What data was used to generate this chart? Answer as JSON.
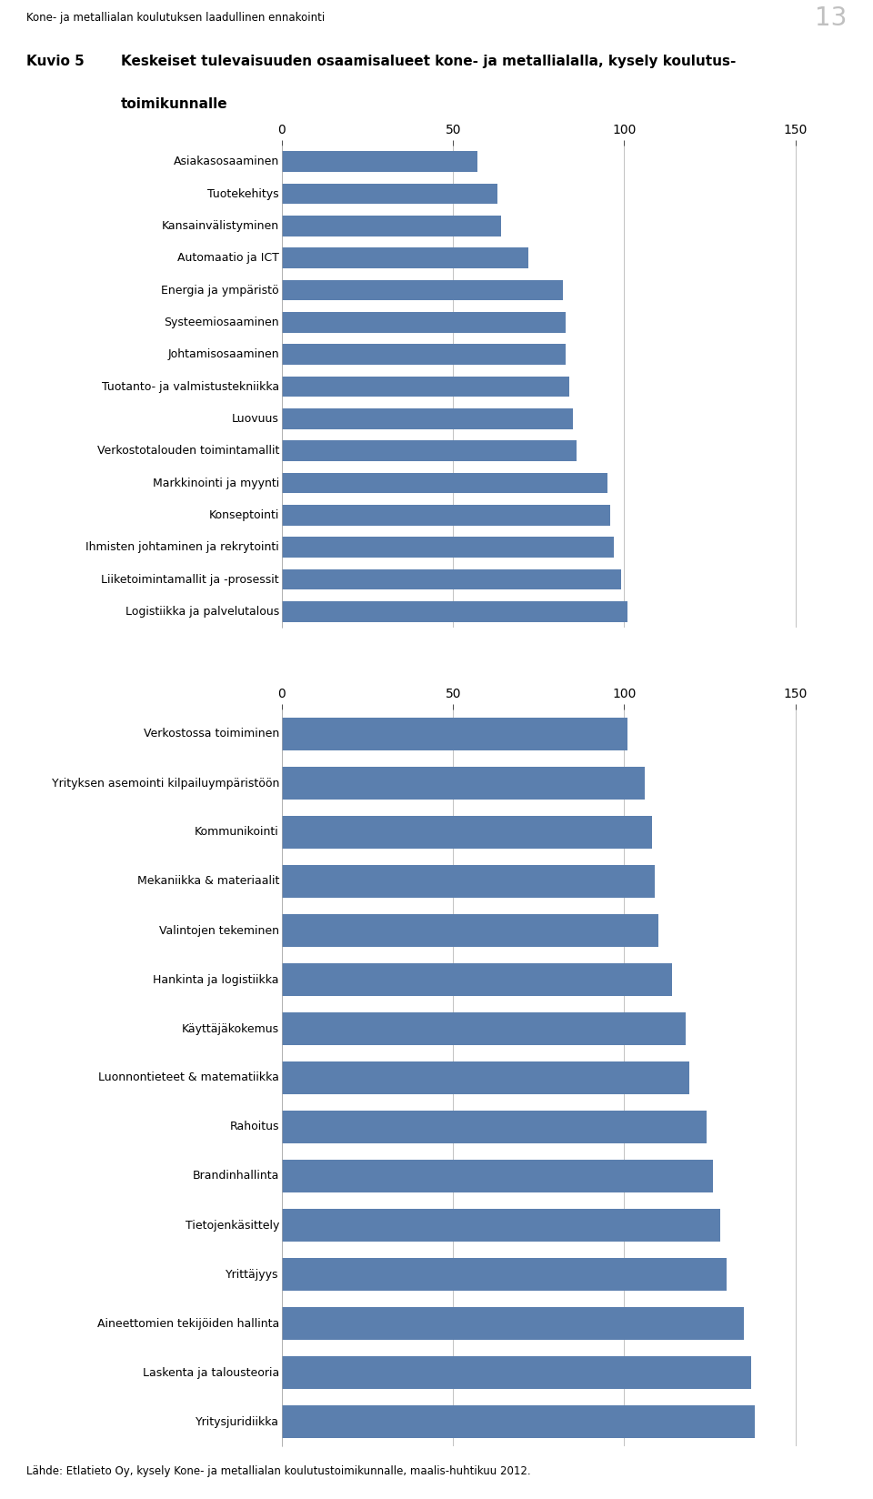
{
  "header_text": "Kone- ja metallialan koulutuksen laadullinen ennakointi",
  "page_number": "13",
  "title_label": "Kuvio 5",
  "title_text1": "Keskeiset tulevaisuuden osaamisalueet kone- ja metallialalla, kysely koulutus-",
  "title_text2": "toimikunnalle",
  "footer_text": "Lähde: Etlatieto Oy, kysely Kone- ja metallialan koulutustoimikunnalle, maalis-huhtikuu 2012.",
  "bar_color": "#5b7fae",
  "chart1_categories": [
    "Asiakasosaaminen",
    "Tuotekehitys",
    "Kansainvälistyminen",
    "Automaatio ja ICT",
    "Energia ja ympäristö",
    "Systeemiosaaminen",
    "Johtamisosaaminen",
    "Tuotanto- ja valmistustekniikka",
    "Luovuus",
    "Verkostotalouden toimintamallit",
    "Markkinointi ja myynti",
    "Konseptointi",
    "Ihmisten johtaminen ja rekrytointi",
    "Liiketoimintamallit ja -prosessit",
    "Logistiikka ja palvelutalous"
  ],
  "chart1_values": [
    57,
    63,
    64,
    72,
    82,
    83,
    83,
    84,
    85,
    86,
    95,
    96,
    97,
    99,
    101
  ],
  "chart2_categories": [
    "Verkostossa toimiminen",
    "Yrityksen asemointi kilpailuympäristöön",
    "Kommunikointi",
    "Mekaniikka & materiaalit",
    "Valintojen tekeminen",
    "Hankinta ja logistiikka",
    "Käyttäjäkokemus",
    "Luonnontieteet & matematiikka",
    "Rahoitus",
    "Brandinhallinta",
    "Tietojenkäsittely",
    "Yrittäjyys",
    "Aineettomien tekijöiden hallinta",
    "Laskenta ja talousteoria",
    "Yritysj uridiikka"
  ],
  "chart2_values": [
    101,
    106,
    108,
    109,
    110,
    114,
    118,
    119,
    124,
    126,
    128,
    130,
    135,
    137,
    138
  ],
  "xlim": [
    0,
    165
  ],
  "xticks": [
    0,
    50,
    100,
    150
  ]
}
